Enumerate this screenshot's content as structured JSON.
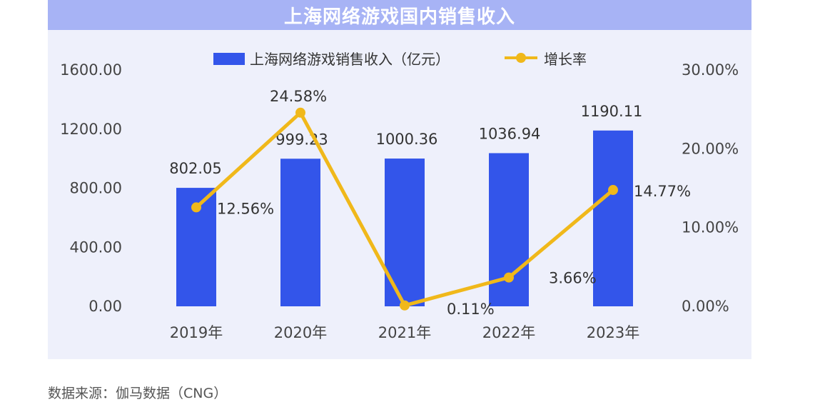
{
  "title": "上海网络游戏国内销售收入",
  "source": "数据来源：伽马数据（CNG）",
  "colors": {
    "bar": "#3355ea",
    "line": "#f0b81a",
    "title_bg": "#a7b3f5",
    "panel_bg": "#eef0fb"
  },
  "chart_data": {
    "type": "bar",
    "categories": [
      "2019年",
      "2020年",
      "2021年",
      "2022年",
      "2023年"
    ],
    "series": [
      {
        "name": "上海网络游戏销售收入（亿元）",
        "type": "bar",
        "axis": "left",
        "values": [
          802.05,
          999.23,
          1000.36,
          1036.94,
          1190.11
        ],
        "labels": [
          "802.05",
          "999.23",
          "1000.36",
          "1036.94",
          "1190.11"
        ]
      },
      {
        "name": "增长率",
        "type": "line",
        "axis": "right",
        "values": [
          12.56,
          24.58,
          0.11,
          3.66,
          14.77
        ],
        "labels": [
          "12.56%",
          "24.58%",
          "0.11%",
          "3.66%",
          "14.77%"
        ]
      }
    ],
    "y_left": {
      "min": 0,
      "max": 1600,
      "ticks": [
        "0.00",
        "400.00",
        "800.00",
        "1200.00",
        "1600.00"
      ]
    },
    "y_right": {
      "min": 0,
      "max": 30,
      "ticks": [
        "0.00%",
        "10.00%",
        "20.00%",
        "30.00%"
      ]
    },
    "legend": "top-center",
    "grid": false
  }
}
